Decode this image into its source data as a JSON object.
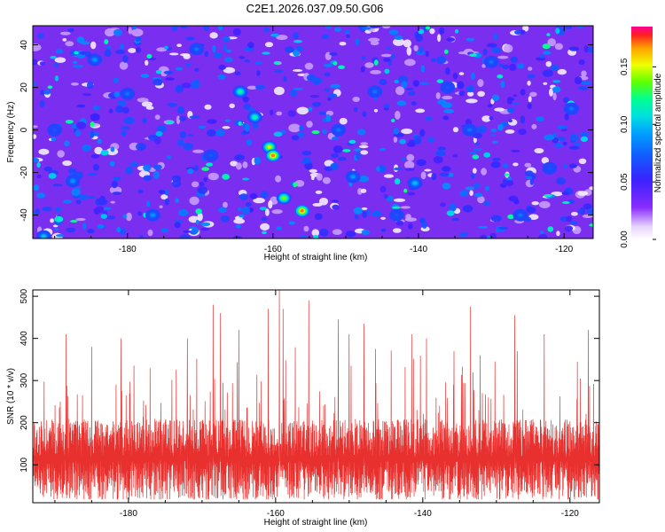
{
  "title": "C2E1.2026.037.09.50.G06",
  "chart_data": [
    {
      "type": "heatmap",
      "xlabel": "Height of straight line (km)",
      "ylabel": "Frequency (Hz)",
      "xlim": [
        -193,
        -116
      ],
      "ylim": [
        -51,
        49
      ],
      "xticks": [
        -180,
        -160,
        -140,
        -120
      ],
      "yticks": [
        -40,
        -20,
        0,
        20,
        40
      ],
      "colorbar": {
        "label": "Normalized spectral amplitude",
        "range": [
          0,
          0.185
        ],
        "ticks": [
          0.0,
          0.05,
          0.1,
          0.15
        ],
        "tick_labels": [
          "0.00",
          "0.05",
          "0.10",
          "0.15"
        ]
      },
      "hotspots": [
        {
          "x": -164.5,
          "y": 18,
          "v": 0.12
        },
        {
          "x": -162.5,
          "y": 6,
          "v": 0.12
        },
        {
          "x": -160.5,
          "y": -8,
          "v": 0.15
        },
        {
          "x": -160.0,
          "y": -12,
          "v": 0.17
        },
        {
          "x": -158.5,
          "y": -32,
          "v": 0.14
        },
        {
          "x": -156.0,
          "y": -38,
          "v": 0.17
        },
        {
          "x": -149.0,
          "y": -22,
          "v": 0.09
        },
        {
          "x": -140.5,
          "y": -25,
          "v": 0.1
        },
        {
          "x": -187.5,
          "y": -24,
          "v": 0.09
        },
        {
          "x": -184.5,
          "y": 33,
          "v": 0.09
        },
        {
          "x": -180.0,
          "y": 17,
          "v": 0.08
        },
        {
          "x": -176.5,
          "y": -40,
          "v": 0.09
        },
        {
          "x": -170.5,
          "y": 38,
          "v": 0.08
        },
        {
          "x": -151.0,
          "y": 0,
          "v": 0.08
        },
        {
          "x": -146.0,
          "y": 18,
          "v": 0.08
        },
        {
          "x": -133.0,
          "y": 0,
          "v": 0.08
        },
        {
          "x": -130.0,
          "y": 32,
          "v": 0.08
        },
        {
          "x": -126.0,
          "y": -40,
          "v": 0.08
        },
        {
          "x": -119.0,
          "y": 10,
          "v": 0.08
        },
        {
          "x": -191.5,
          "y": -50,
          "v": 0.1
        },
        {
          "x": -190.0,
          "y": 0,
          "v": 0.07
        },
        {
          "x": -168.5,
          "y": -12,
          "v": 0.07
        },
        {
          "x": -143.0,
          "y": -40,
          "v": 0.07
        },
        {
          "x": -136.0,
          "y": 20,
          "v": 0.07
        },
        {
          "x": -122.0,
          "y": -18,
          "v": 0.07
        }
      ]
    },
    {
      "type": "line",
      "xlabel": "Height of straight line (km)",
      "ylabel": "SNR (10 * v/v)",
      "xlim": [
        -193,
        -116
      ],
      "ylim": [
        10,
        515
      ],
      "xticks": [
        -180,
        -160,
        -140,
        -120
      ],
      "yticks": [
        100,
        200,
        300,
        400,
        500
      ],
      "series": [
        {
          "color": "#e8312e",
          "baseline": 150,
          "spikes": [
            {
              "x": -188.5,
              "y": 410
            },
            {
              "x": -185.0,
              "y": 380
            },
            {
              "x": -181.0,
              "y": 400
            },
            {
              "x": -172.0,
              "y": 400
            },
            {
              "x": -168.5,
              "y": 480
            },
            {
              "x": -167.5,
              "y": 460
            },
            {
              "x": -165.0,
              "y": 420
            },
            {
              "x": -161.0,
              "y": 470
            },
            {
              "x": -159.5,
              "y": 515
            },
            {
              "x": -159.0,
              "y": 470
            },
            {
              "x": -155.5,
              "y": 490
            },
            {
              "x": -151.5,
              "y": 445
            },
            {
              "x": -150.0,
              "y": 410
            },
            {
              "x": -148.0,
              "y": 435
            },
            {
              "x": -141.5,
              "y": 410
            },
            {
              "x": -139.5,
              "y": 400
            },
            {
              "x": -133.5,
              "y": 475
            },
            {
              "x": -127.5,
              "y": 455
            },
            {
              "x": -123.5,
              "y": 410
            },
            {
              "x": -117.5,
              "y": 420
            }
          ]
        }
      ]
    }
  ]
}
